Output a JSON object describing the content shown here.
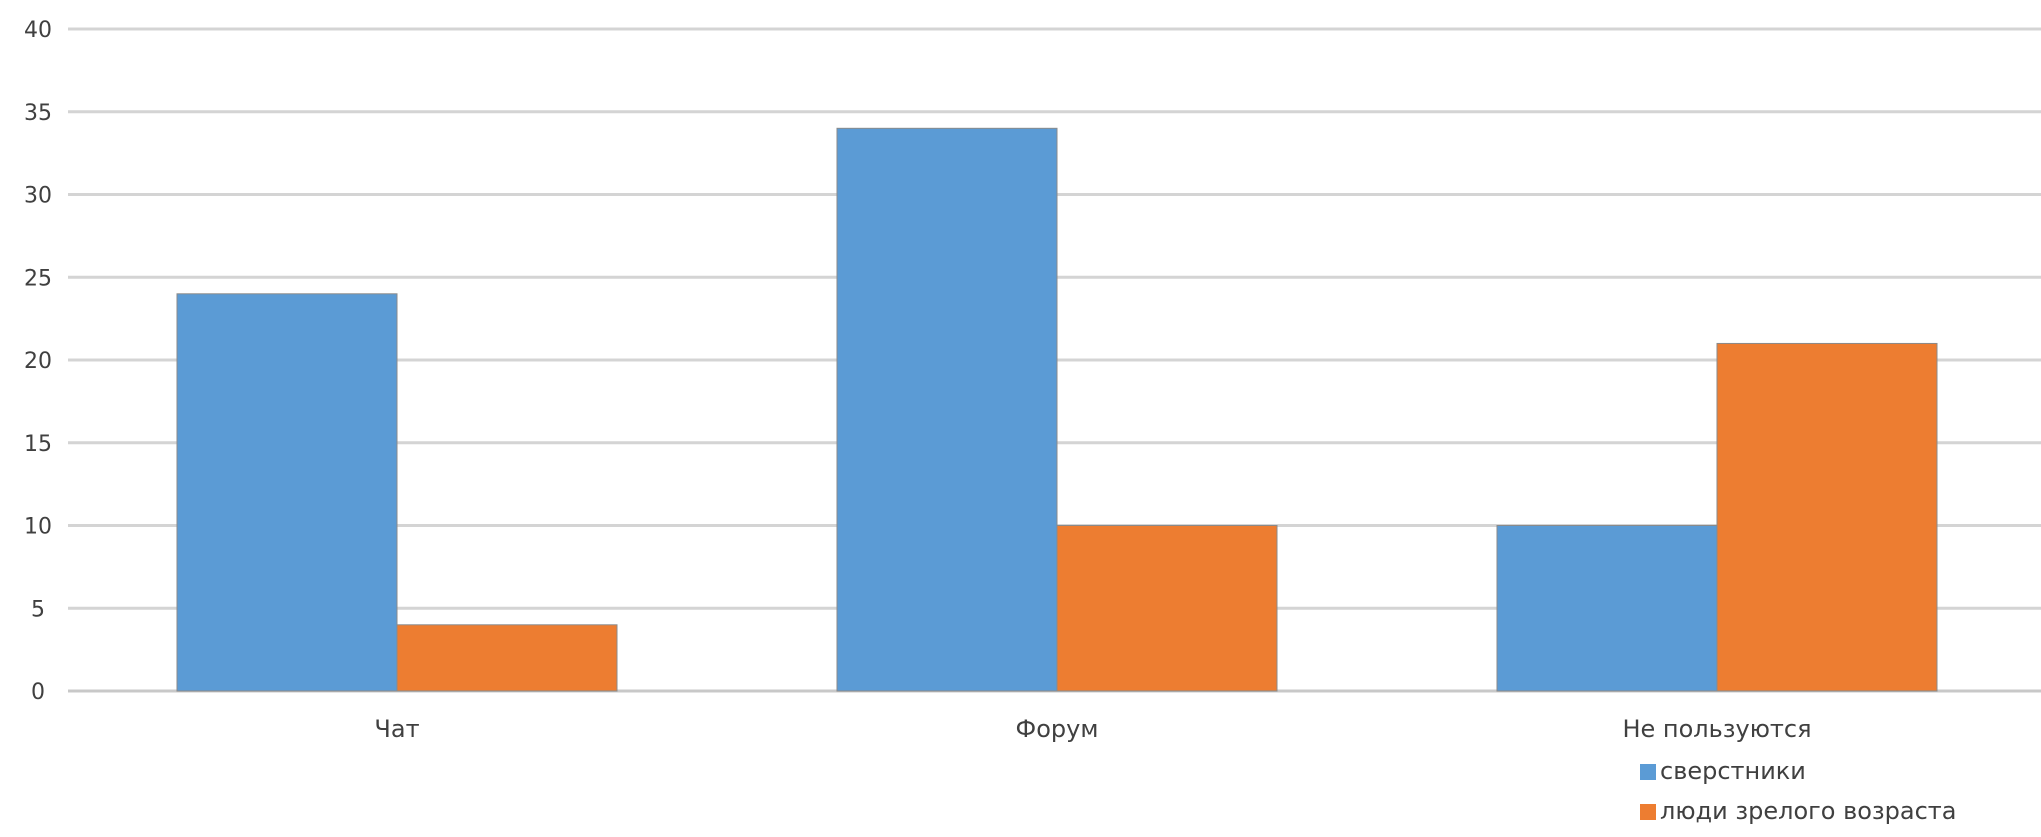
{
  "chart_data": {
    "type": "bar",
    "categories": [
      "Чат",
      "Форум",
      "Не пользуются"
    ],
    "series": [
      {
        "name": "сверстники",
        "values": [
          24,
          34,
          10
        ],
        "color": "#5B9BD5"
      },
      {
        "name": "люди зрелого возраста",
        "values": [
          4,
          10,
          21
        ],
        "color": "#ED7D31"
      }
    ],
    "ylim": [
      0,
      40
    ],
    "yticks": [
      0,
      5,
      10,
      15,
      20,
      25,
      30,
      35,
      40
    ],
    "grid": true,
    "legend_position": "bottom-right",
    "title": "",
    "xlabel": "",
    "ylabel": ""
  }
}
